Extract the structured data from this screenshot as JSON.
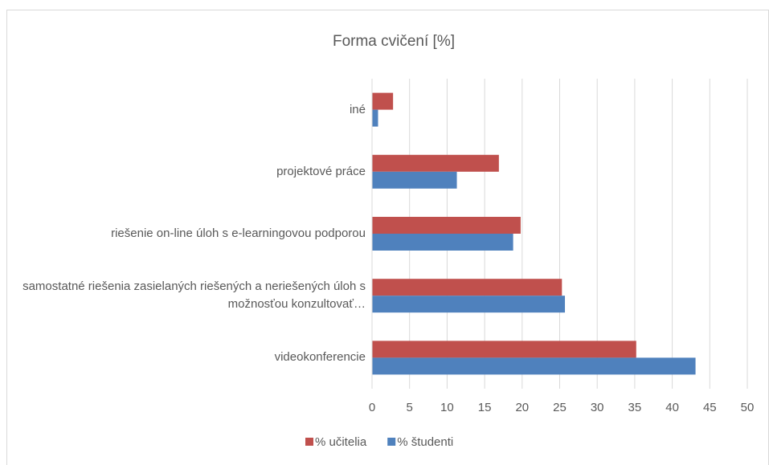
{
  "chart_data": {
    "type": "barh",
    "title": "Forma cvičení [%]",
    "categories": [
      "iné",
      "projektové práce",
      "riešenie on-line úloh s e-learningovou podporou",
      "samostatné riešenia zasielaných riešených a neriešených úloh s možnosťou konzultovať…",
      "videokonferencie"
    ],
    "series": [
      {
        "name": "% učitelia",
        "color": "#c0504d",
        "values": [
          2.8,
          16.9,
          19.8,
          25.3,
          35.2
        ]
      },
      {
        "name": "% študenti",
        "color": "#4f81bd",
        "values": [
          0.8,
          11.3,
          18.8,
          25.7,
          43.1
        ]
      }
    ],
    "xlim": [
      0,
      50
    ],
    "xticks": [
      0,
      5,
      10,
      15,
      20,
      25,
      30,
      35,
      40,
      45,
      50
    ],
    "grid": true,
    "legend": "bottom"
  }
}
